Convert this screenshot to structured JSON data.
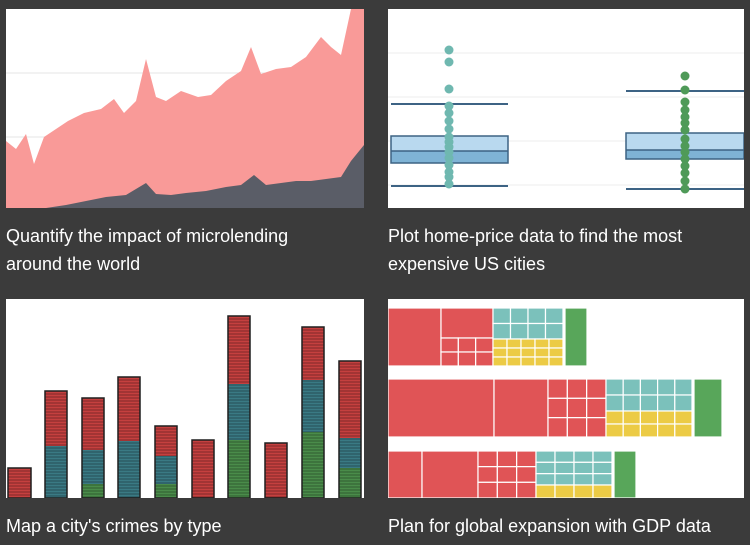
{
  "gallery": {
    "cards": [
      {
        "caption_line1": "Quantify the impact of microlending",
        "caption_line2": "around the world",
        "thumbnail": "area-chart-thumbnail"
      },
      {
        "caption_line1": "Plot home-price data to find the most",
        "caption_line2": "expensive US cities",
        "thumbnail": "box-plot-thumbnail"
      },
      {
        "caption_line1": "Map a city's crimes by type",
        "caption_line2": "",
        "thumbnail": "stacked-bar-thumbnail"
      },
      {
        "caption_line1": "Plan for global expansion with GDP data",
        "caption_line2": "",
        "thumbnail": "treemap-thumbnail"
      }
    ]
  },
  "colors": {
    "background": "#3b3b3b",
    "area_pink": "#f99a98",
    "area_dark": "#5a5d67",
    "box_fill_light": "#b9d9ef",
    "box_fill_mid": "#7fb3d5",
    "box_line": "#3d6384",
    "points_teal": "#6fb8b0",
    "points_green": "#4f9a58",
    "bar_red": "#c5403f",
    "bar_teal": "#3a7a84",
    "bar_green": "#4a8c4a",
    "treemap_red": "#e05456",
    "treemap_teal": "#7bc1bb",
    "treemap_yellow": "#eccb45",
    "treemap_green": "#58a65a"
  }
}
